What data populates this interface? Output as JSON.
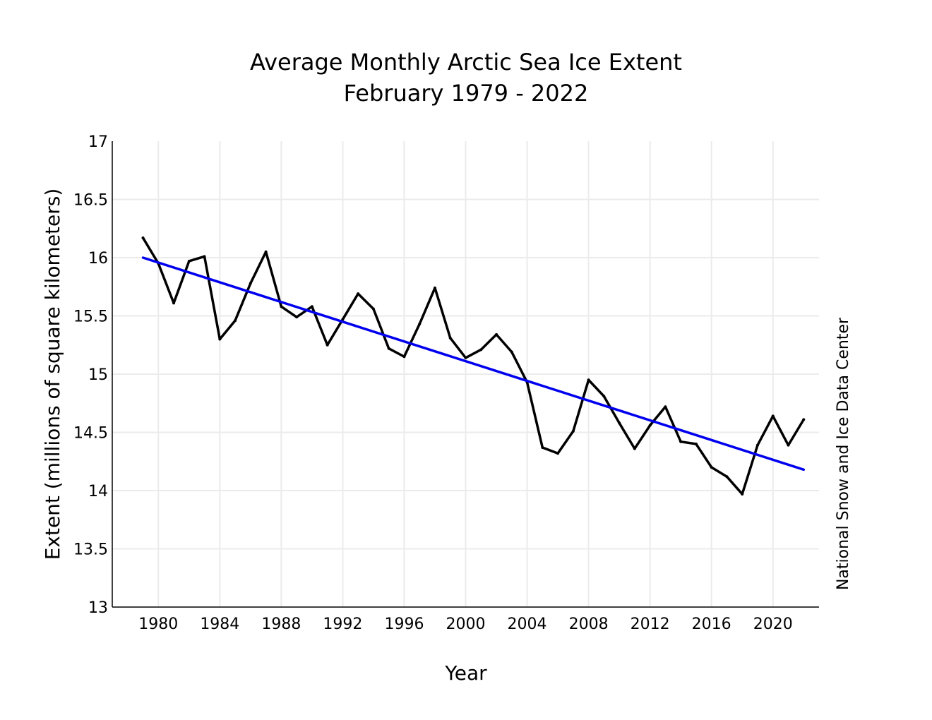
{
  "chart_data": {
    "type": "line",
    "title_line1": "Average Monthly Arctic Sea Ice Extent",
    "title_line2": "February 1979 - 2022",
    "xlabel": "Year",
    "ylabel": "Extent (millions of square kilometers)",
    "credit": "National Snow and Ice Data Center",
    "xlim": [
      1977,
      2023
    ],
    "ylim": [
      13,
      17
    ],
    "xticks": [
      "1980",
      "1984",
      "1988",
      "1992",
      "1996",
      "2000",
      "2004",
      "2008",
      "2012",
      "2016",
      "2020"
    ],
    "yticks": [
      "13",
      "13.5",
      "14",
      "14.5",
      "15",
      "15.5",
      "16",
      "16.5",
      "17"
    ],
    "grid": true,
    "series": [
      {
        "color": "#000000",
        "x": [
          1979,
          1980,
          1981,
          1982,
          1983,
          1984,
          1985,
          1986,
          1987,
          1988,
          1989,
          1990,
          1991,
          1992,
          1993,
          1994,
          1995,
          1996,
          1997,
          1998,
          1999,
          2000,
          2001,
          2002,
          2003,
          2004,
          2005,
          2006,
          2007,
          2008,
          2009,
          2010,
          2011,
          2012,
          2013,
          2014,
          2015,
          2016,
          2017,
          2018,
          2019,
          2020,
          2021,
          2022
        ],
        "values": [
          16.17,
          15.95,
          15.61,
          15.97,
          16.01,
          15.3,
          15.46,
          15.78,
          16.05,
          15.58,
          15.49,
          15.58,
          15.25,
          15.47,
          15.69,
          15.56,
          15.22,
          15.15,
          15.43,
          15.74,
          15.31,
          15.14,
          15.21,
          15.34,
          15.19,
          14.93,
          14.37,
          14.32,
          14.51,
          14.95,
          14.81,
          14.58,
          14.36,
          14.56,
          14.72,
          14.42,
          14.4,
          14.2,
          14.12,
          13.97,
          14.39,
          14.64,
          14.39,
          14.61
        ]
      },
      {
        "color": "#0000ee",
        "type": "trend",
        "x": [
          1979,
          2022
        ],
        "values": [
          16.0,
          14.18
        ]
      }
    ]
  }
}
